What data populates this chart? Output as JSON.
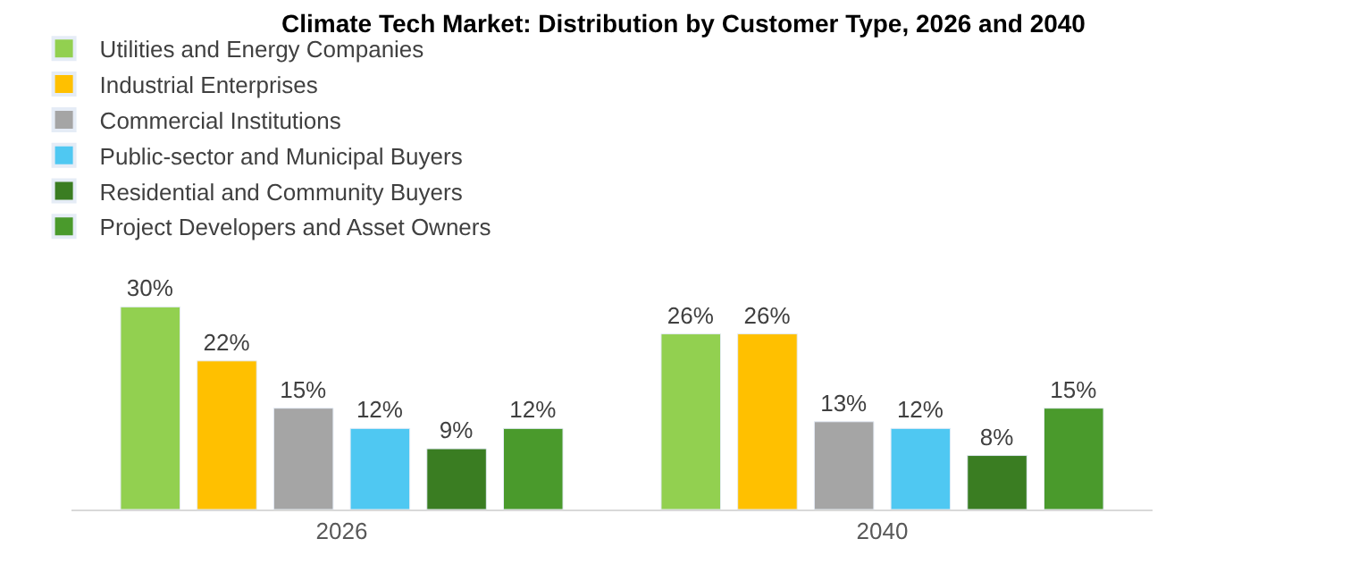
{
  "chart_data": {
    "type": "bar",
    "title": "Climate Tech Market: Distribution by Customer Type, 2026 and 2040",
    "categories": [
      "2026",
      "2040"
    ],
    "series": [
      {
        "name": "Utilities and Energy Companies",
        "color": "#92d050",
        "values": [
          30,
          26
        ],
        "value_labels": [
          "30%",
          "26%"
        ]
      },
      {
        "name": "Industrial Enterprises",
        "color": "#ffc000",
        "values": [
          22,
          26
        ],
        "value_labels": [
          "22%",
          "26%"
        ]
      },
      {
        "name": "Commercial Institutions",
        "color": "#a5a5a5",
        "values": [
          15,
          13
        ],
        "value_labels": [
          "15%",
          "13%"
        ]
      },
      {
        "name": "Public-sector and Municipal Buyers",
        "color": "#4fc8f2",
        "values": [
          12,
          12
        ],
        "value_labels": [
          "12%",
          "12%"
        ]
      },
      {
        "name": "Residential and Community Buyers",
        "color": "#3a7d22",
        "values": [
          9,
          8
        ],
        "value_labels": [
          "9%",
          "8%"
        ]
      },
      {
        "name": "Project Developers and Asset Owners",
        "color": "#4a9a2c",
        "values": [
          12,
          15
        ],
        "value_labels": [
          "12%",
          "15%"
        ]
      }
    ],
    "legend": "top"
  }
}
